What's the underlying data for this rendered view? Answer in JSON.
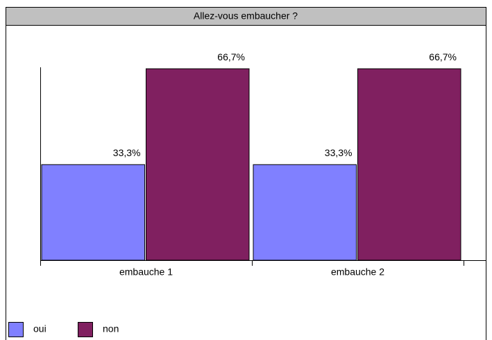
{
  "chart_data": {
    "type": "bar",
    "title": "Allez-vous embaucher ?",
    "categories": [
      "embauche 1",
      "embauche 2"
    ],
    "series": [
      {
        "name": "oui",
        "color": "#8080ff",
        "values": [
          33.3,
          33.3
        ],
        "value_labels": [
          "33,3%",
          "33,3%"
        ]
      },
      {
        "name": "non",
        "color": "#802060",
        "values": [
          66.7,
          66.7
        ],
        "value_labels": [
          "66,7%",
          "66,7%"
        ]
      }
    ],
    "ylim": [
      0,
      67.2
    ],
    "legend": "bottom-left"
  }
}
